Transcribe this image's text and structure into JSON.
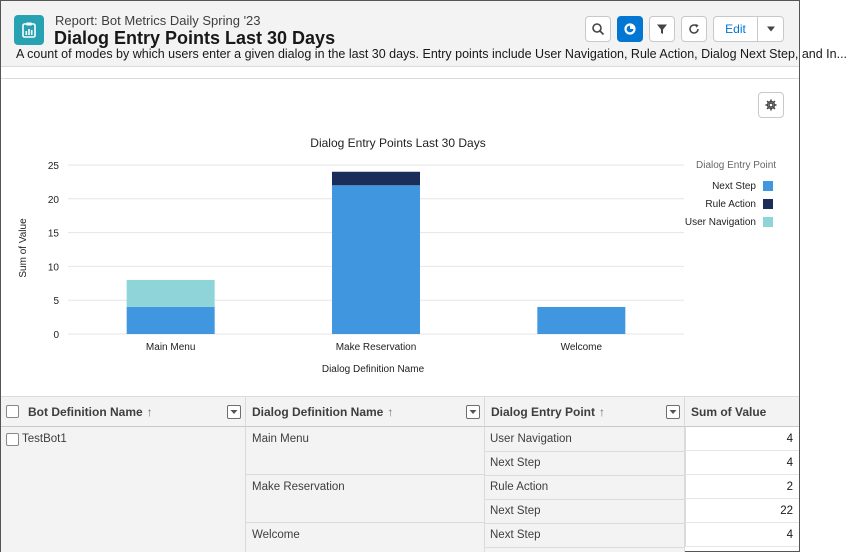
{
  "header": {
    "subtitle": "Report: Bot Metrics Daily Spring '23",
    "title": "Dialog Entry Points Last 30 Days",
    "description": "A count of modes by which users enter a given dialog in the last 30 days. Entry points include User Navigation, Rule Action, Dialog Next Step, and In...",
    "edit_label": "Edit",
    "icons": [
      "report-icon",
      "search-icon",
      "chart-icon",
      "filter-icon",
      "refresh-icon",
      "chevron-down-icon"
    ]
  },
  "colors": {
    "next_step": "#4196e0",
    "rule_action": "#1b2e5a",
    "user_navigation": "#8fd4d9",
    "accent": "#0176d3"
  },
  "chart_data": {
    "type": "bar",
    "stacked": true,
    "title": "Dialog Entry Points Last 30 Days",
    "xlabel": "Dialog Definition Name",
    "ylabel": "Sum of Value",
    "ylim": [
      0,
      25
    ],
    "yticks": [
      0,
      5,
      10,
      15,
      20,
      25
    ],
    "categories": [
      "Main Menu",
      "Make Reservation",
      "Welcome"
    ],
    "legend_title": "Dialog Entry Point",
    "legend_position": "right",
    "series": [
      {
        "name": "Next Step",
        "color": "#4196e0",
        "values": [
          4,
          22,
          4
        ]
      },
      {
        "name": "Rule Action",
        "color": "#1b2e5a",
        "values": [
          0,
          2,
          0
        ]
      },
      {
        "name": "User Navigation",
        "color": "#8fd4d9",
        "values": [
          4,
          0,
          0
        ]
      }
    ]
  },
  "table": {
    "columns": [
      {
        "label": "Bot Definition Name",
        "sort": "↑"
      },
      {
        "label": "Dialog Definition Name",
        "sort": "↑"
      },
      {
        "label": "Dialog Entry Point",
        "sort": "↑"
      },
      {
        "label": "Sum of Value",
        "sort": ""
      }
    ],
    "bot": "TestBot1",
    "dialogs": [
      "Main Menu",
      "Make Reservation",
      "Welcome"
    ],
    "rows": [
      {
        "entry": "User Navigation",
        "value": "4"
      },
      {
        "entry": "Next Step",
        "value": "4"
      },
      {
        "entry": "Rule Action",
        "value": "2"
      },
      {
        "entry": "Next Step",
        "value": "22"
      },
      {
        "entry": "Next Step",
        "value": "4"
      }
    ]
  }
}
